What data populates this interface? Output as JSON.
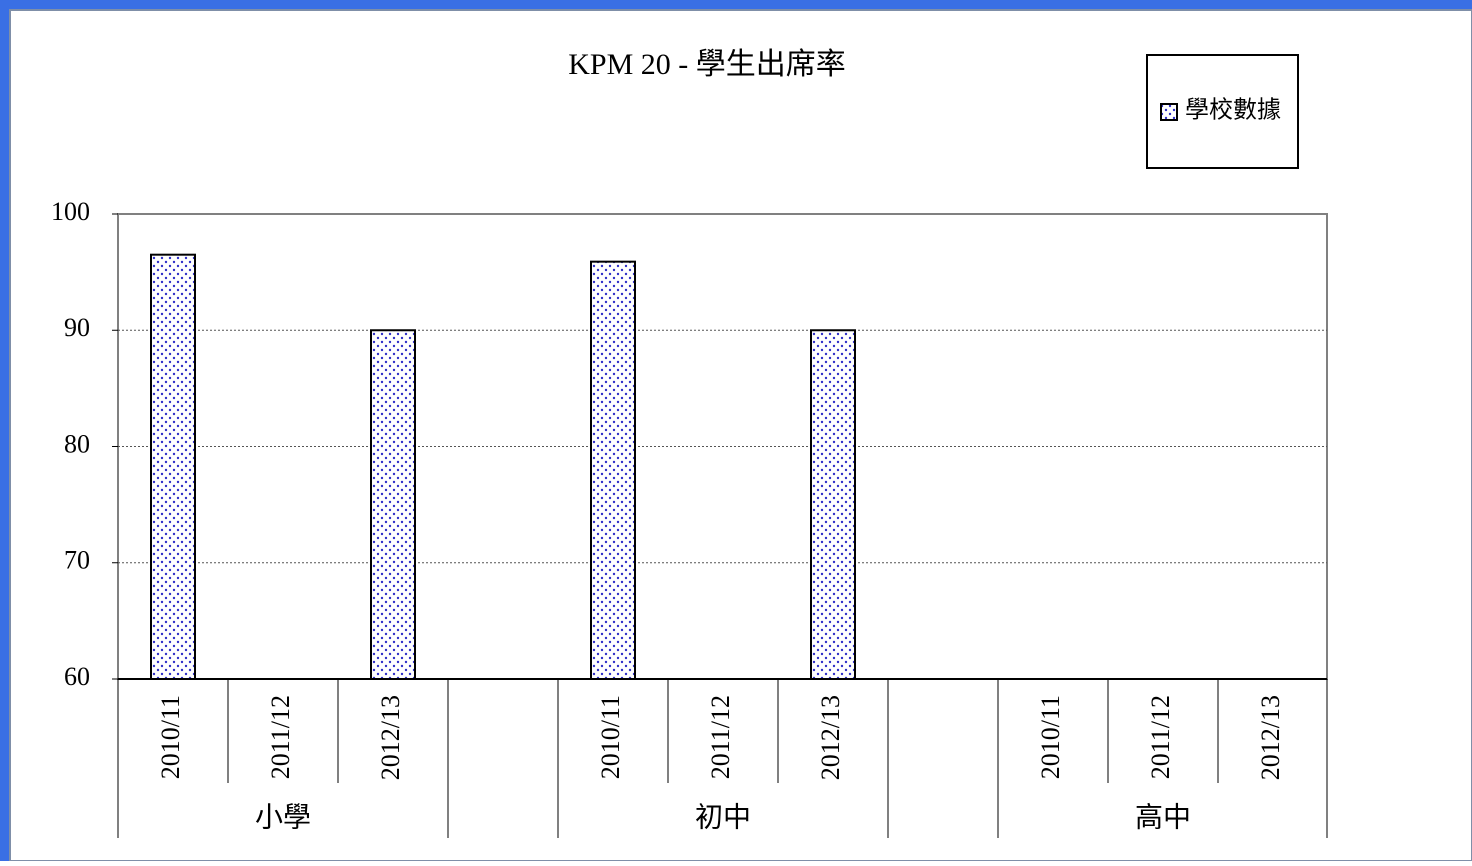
{
  "chart_data": {
    "type": "grouped_bar",
    "title": "KPM 20 - 學生出席率",
    "series_name": "學校數據",
    "color": "#3030c8",
    "groups": [
      {
        "name": "小學",
        "categories": [
          "2010/11",
          "2011/12",
          "2012/13"
        ],
        "values": [
          96.5,
          null,
          90
        ]
      },
      {
        "name": "初中",
        "categories": [
          "2010/11",
          "2011/12",
          "2012/13"
        ],
        "values": [
          95.9,
          null,
          90
        ]
      },
      {
        "name": "高中",
        "categories": [
          "2010/11",
          "2011/12",
          "2012/13"
        ],
        "values": [
          null,
          null,
          null
        ]
      }
    ],
    "ylim": [
      60,
      100
    ],
    "yticks": [
      60,
      70,
      80,
      90,
      100
    ],
    "grid": true,
    "legend": "top-right"
  }
}
